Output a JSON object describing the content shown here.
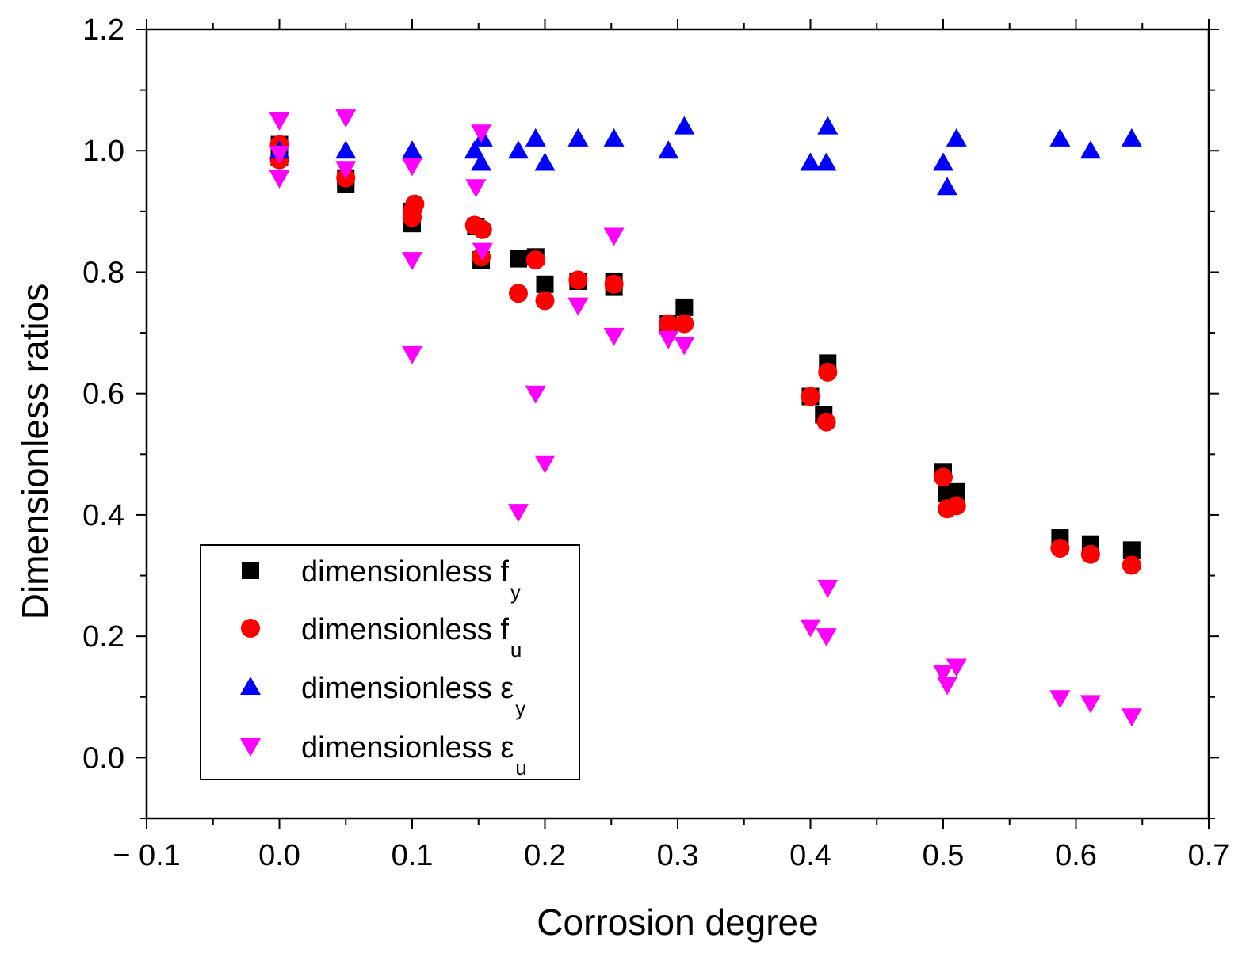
{
  "chart_data": {
    "type": "scatter",
    "title": "",
    "xlabel": "Corrosion degree",
    "ylabel": "Dimensionless ratios",
    "xlim": [
      -0.1,
      0.7
    ],
    "ylim": [
      -0.1,
      1.2
    ],
    "x_ticks": [
      -0.1,
      0.0,
      0.1,
      0.2,
      0.3,
      0.4,
      0.5,
      0.6,
      0.7
    ],
    "x_tick_labels": [
      "− 0.1",
      "0.0",
      "0.1",
      "0.2",
      "0.3",
      "0.4",
      "0.5",
      "0.6",
      "0.7"
    ],
    "y_ticks": [
      0.0,
      0.2,
      0.4,
      0.6,
      0.8,
      1.0,
      1.2
    ],
    "y_tick_labels": [
      "0.0",
      "0.2",
      "0.4",
      "0.6",
      "0.8",
      "1.0",
      "1.2"
    ],
    "grid": false,
    "legend_position": "bottom-left",
    "series": [
      {
        "name": "dimensionless f",
        "subscript": "y",
        "marker": "square",
        "color": "#000000",
        "points": [
          [
            0.0,
            1.01
          ],
          [
            0.0,
            0.99
          ],
          [
            0.05,
            0.945
          ],
          [
            0.05,
            0.955
          ],
          [
            0.1,
            0.88
          ],
          [
            0.1,
            0.9
          ],
          [
            0.148,
            0.875
          ],
          [
            0.152,
            0.82
          ],
          [
            0.18,
            0.822
          ],
          [
            0.193,
            0.825
          ],
          [
            0.2,
            0.78
          ],
          [
            0.225,
            0.785
          ],
          [
            0.252,
            0.785
          ],
          [
            0.252,
            0.775
          ],
          [
            0.293,
            0.715
          ],
          [
            0.305,
            0.742
          ],
          [
            0.4,
            0.595
          ],
          [
            0.41,
            0.565
          ],
          [
            0.413,
            0.65
          ],
          [
            0.5,
            0.47
          ],
          [
            0.503,
            0.435
          ],
          [
            0.51,
            0.438
          ],
          [
            0.588,
            0.362
          ],
          [
            0.611,
            0.352
          ],
          [
            0.642,
            0.342
          ]
        ]
      },
      {
        "name": "dimensionless f",
        "subscript": "u",
        "marker": "circle",
        "color": "#ff0000",
        "points": [
          [
            0.0,
            1.01
          ],
          [
            0.0,
            0.985
          ],
          [
            0.05,
            0.955
          ],
          [
            0.1,
            0.9
          ],
          [
            0.102,
            0.912
          ],
          [
            0.1,
            0.89
          ],
          [
            0.147,
            0.877
          ],
          [
            0.153,
            0.87
          ],
          [
            0.152,
            0.825
          ],
          [
            0.18,
            0.765
          ],
          [
            0.193,
            0.82
          ],
          [
            0.2,
            0.753
          ],
          [
            0.225,
            0.787
          ],
          [
            0.252,
            0.78
          ],
          [
            0.293,
            0.715
          ],
          [
            0.305,
            0.715
          ],
          [
            0.4,
            0.595
          ],
          [
            0.412,
            0.553
          ],
          [
            0.413,
            0.635
          ],
          [
            0.5,
            0.462
          ],
          [
            0.503,
            0.41
          ],
          [
            0.51,
            0.415
          ],
          [
            0.588,
            0.345
          ],
          [
            0.611,
            0.335
          ],
          [
            0.642,
            0.317
          ]
        ]
      },
      {
        "name": "dimensionless ε",
        "subscript": "y",
        "marker": "triangle-up",
        "color": "#0000ff",
        "points": [
          [
            0.0,
            1.0
          ],
          [
            0.05,
            1.0
          ],
          [
            0.1,
            1.0
          ],
          [
            0.147,
            1.0
          ],
          [
            0.152,
            0.98
          ],
          [
            0.153,
            1.02
          ],
          [
            0.18,
            1.0
          ],
          [
            0.193,
            1.02
          ],
          [
            0.2,
            0.98
          ],
          [
            0.225,
            1.02
          ],
          [
            0.252,
            1.02
          ],
          [
            0.293,
            1.0
          ],
          [
            0.305,
            1.04
          ],
          [
            0.4,
            0.98
          ],
          [
            0.412,
            0.98
          ],
          [
            0.413,
            1.04
          ],
          [
            0.5,
            0.98
          ],
          [
            0.503,
            0.94
          ],
          [
            0.51,
            1.02
          ],
          [
            0.588,
            1.02
          ],
          [
            0.611,
            1.0
          ],
          [
            0.642,
            1.02
          ]
        ]
      },
      {
        "name": "dimensionless ε",
        "subscript": "u",
        "marker": "triangle-down",
        "color": "#ff00ff",
        "points": [
          [
            0.0,
            1.05
          ],
          [
            0.0,
            0.995
          ],
          [
            0.0,
            0.955
          ],
          [
            0.05,
            1.055
          ],
          [
            0.05,
            0.97
          ],
          [
            0.1,
            0.975
          ],
          [
            0.1,
            0.82
          ],
          [
            0.1,
            0.665
          ],
          [
            0.148,
            0.94
          ],
          [
            0.152,
            1.03
          ],
          [
            0.153,
            0.835
          ],
          [
            0.18,
            0.405
          ],
          [
            0.193,
            0.6
          ],
          [
            0.2,
            0.485
          ],
          [
            0.225,
            0.745
          ],
          [
            0.252,
            0.86
          ],
          [
            0.252,
            0.695
          ],
          [
            0.293,
            0.69
          ],
          [
            0.305,
            0.68
          ],
          [
            0.4,
            0.215
          ],
          [
            0.412,
            0.2
          ],
          [
            0.413,
            0.28
          ],
          [
            0.5,
            0.14
          ],
          [
            0.503,
            0.12
          ],
          [
            0.51,
            0.15
          ],
          [
            0.588,
            0.098
          ],
          [
            0.611,
            0.09
          ],
          [
            0.642,
            0.068
          ]
        ]
      }
    ]
  }
}
